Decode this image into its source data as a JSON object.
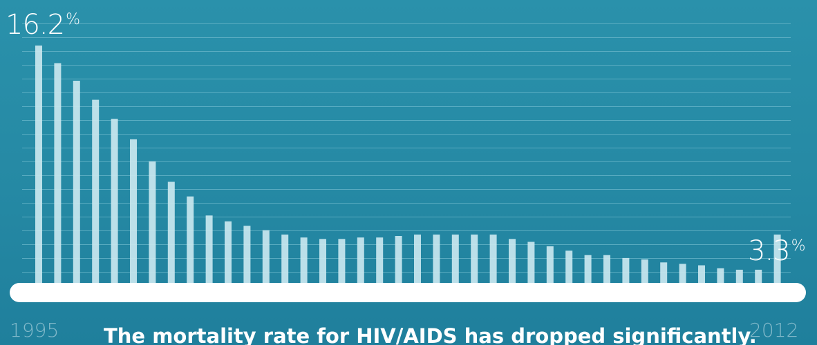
{
  "chart_data": {
    "type": "bar",
    "title": "",
    "xlabel": "",
    "ylabel": "",
    "x_start_label": "1995",
    "x_end_label": "2012",
    "ylim": [
      0,
      16.2
    ],
    "grid": true,
    "series": [
      {
        "values": [
          16.2,
          15.0,
          13.8,
          12.5,
          11.2,
          9.8,
          8.3,
          6.9,
          5.9,
          4.6,
          4.2,
          3.9,
          3.6,
          3.3,
          3.1,
          3.0,
          3.0,
          3.1,
          3.1,
          3.2,
          3.3,
          3.3,
          3.3,
          3.3,
          3.3,
          3.0,
          2.8,
          2.5,
          2.2,
          1.9,
          1.9,
          1.7,
          1.6,
          1.4,
          1.3,
          1.2,
          1.0,
          0.9,
          0.9,
          3.3
        ]
      }
    ],
    "colors": {
      "background": "#2a8fa8",
      "bar": "#c9e7ef",
      "baseline": "#ffffff",
      "grid": "#6cb8cb"
    }
  },
  "callouts": {
    "start_value": "16.2",
    "start_unit": "%",
    "end_value": "3.3",
    "end_unit": "%"
  },
  "caption": "The mortality rate for HIV/AIDS has dropped significantly."
}
